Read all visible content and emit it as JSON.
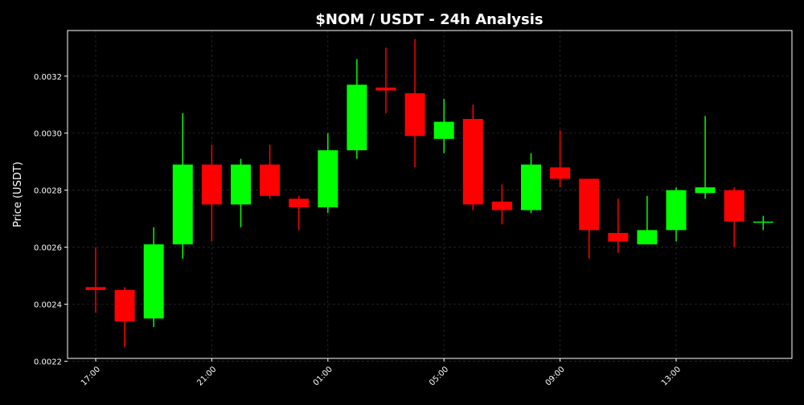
{
  "chart_data": {
    "type": "candlestick",
    "title": "$NOM / USDT - 24h Analysis",
    "xlabel": "",
    "ylabel": "Price (USDT)",
    "ylim": [
      0.00221,
      0.00336
    ],
    "grid": true,
    "y_ticks": [
      0.0022,
      0.0024,
      0.0026,
      0.0028,
      0.003,
      0.0032
    ],
    "y_tick_labels": [
      "0.0022",
      "0.0024",
      "0.0026",
      "0.0028",
      "0.0030",
      "0.0032"
    ],
    "x_tick_labels": [
      "17:00",
      "21:00",
      "01:00",
      "05:00",
      "09:00",
      "13:00"
    ],
    "x_tick_indices": [
      0,
      4,
      8,
      12,
      16,
      20
    ],
    "colors": {
      "up": "#00ff00",
      "down": "#ff0000",
      "background": "#000000",
      "text": "#ffffff",
      "grid": "#2a2a2a"
    },
    "candles": [
      {
        "time": "17:00",
        "open": 0.00246,
        "high": 0.0026,
        "low": 0.00237,
        "close": 0.00245
      },
      {
        "time": "18:00",
        "open": 0.00245,
        "high": 0.00246,
        "low": 0.00225,
        "close": 0.00234
      },
      {
        "time": "19:00",
        "open": 0.00235,
        "high": 0.00267,
        "low": 0.00232,
        "close": 0.00261
      },
      {
        "time": "20:00",
        "open": 0.00261,
        "high": 0.00307,
        "low": 0.00256,
        "close": 0.00289
      },
      {
        "time": "21:00",
        "open": 0.00289,
        "high": 0.00296,
        "low": 0.00262,
        "close": 0.00275
      },
      {
        "time": "22:00",
        "open": 0.00275,
        "high": 0.00291,
        "low": 0.00267,
        "close": 0.00289
      },
      {
        "time": "23:00",
        "open": 0.00289,
        "high": 0.00296,
        "low": 0.00277,
        "close": 0.00278
      },
      {
        "time": "00:00",
        "open": 0.00277,
        "high": 0.00278,
        "low": 0.00266,
        "close": 0.00274
      },
      {
        "time": "01:00",
        "open": 0.00274,
        "high": 0.003,
        "low": 0.00272,
        "close": 0.00294
      },
      {
        "time": "02:00",
        "open": 0.00294,
        "high": 0.00326,
        "low": 0.00291,
        "close": 0.00317
      },
      {
        "time": "03:00",
        "open": 0.00316,
        "high": 0.0033,
        "low": 0.00307,
        "close": 0.00315
      },
      {
        "time": "04:00",
        "open": 0.00314,
        "high": 0.00333,
        "low": 0.00288,
        "close": 0.00299
      },
      {
        "time": "05:00",
        "open": 0.00298,
        "high": 0.00312,
        "low": 0.00293,
        "close": 0.00304
      },
      {
        "time": "06:00",
        "open": 0.00305,
        "high": 0.0031,
        "low": 0.00273,
        "close": 0.00275
      },
      {
        "time": "07:00",
        "open": 0.00276,
        "high": 0.00282,
        "low": 0.00268,
        "close": 0.00273
      },
      {
        "time": "08:00",
        "open": 0.00273,
        "high": 0.00293,
        "low": 0.00272,
        "close": 0.00289
      },
      {
        "time": "09:00",
        "open": 0.00288,
        "high": 0.00301,
        "low": 0.00281,
        "close": 0.00284
      },
      {
        "time": "10:00",
        "open": 0.00284,
        "high": 0.00284,
        "low": 0.00256,
        "close": 0.00266
      },
      {
        "time": "11:00",
        "open": 0.00265,
        "high": 0.00277,
        "low": 0.00258,
        "close": 0.00262
      },
      {
        "time": "12:00",
        "open": 0.00261,
        "high": 0.00278,
        "low": 0.00261,
        "close": 0.00266
      },
      {
        "time": "13:00",
        "open": 0.00266,
        "high": 0.00281,
        "low": 0.00262,
        "close": 0.0028
      },
      {
        "time": "14:00",
        "open": 0.00279,
        "high": 0.00306,
        "low": 0.00277,
        "close": 0.00281
      },
      {
        "time": "15:00",
        "open": 0.0028,
        "high": 0.00281,
        "low": 0.0026,
        "close": 0.00269
      },
      {
        "time": "16:00",
        "open": 0.00269,
        "high": 0.00271,
        "low": 0.00266,
        "close": 0.00269
      }
    ]
  }
}
